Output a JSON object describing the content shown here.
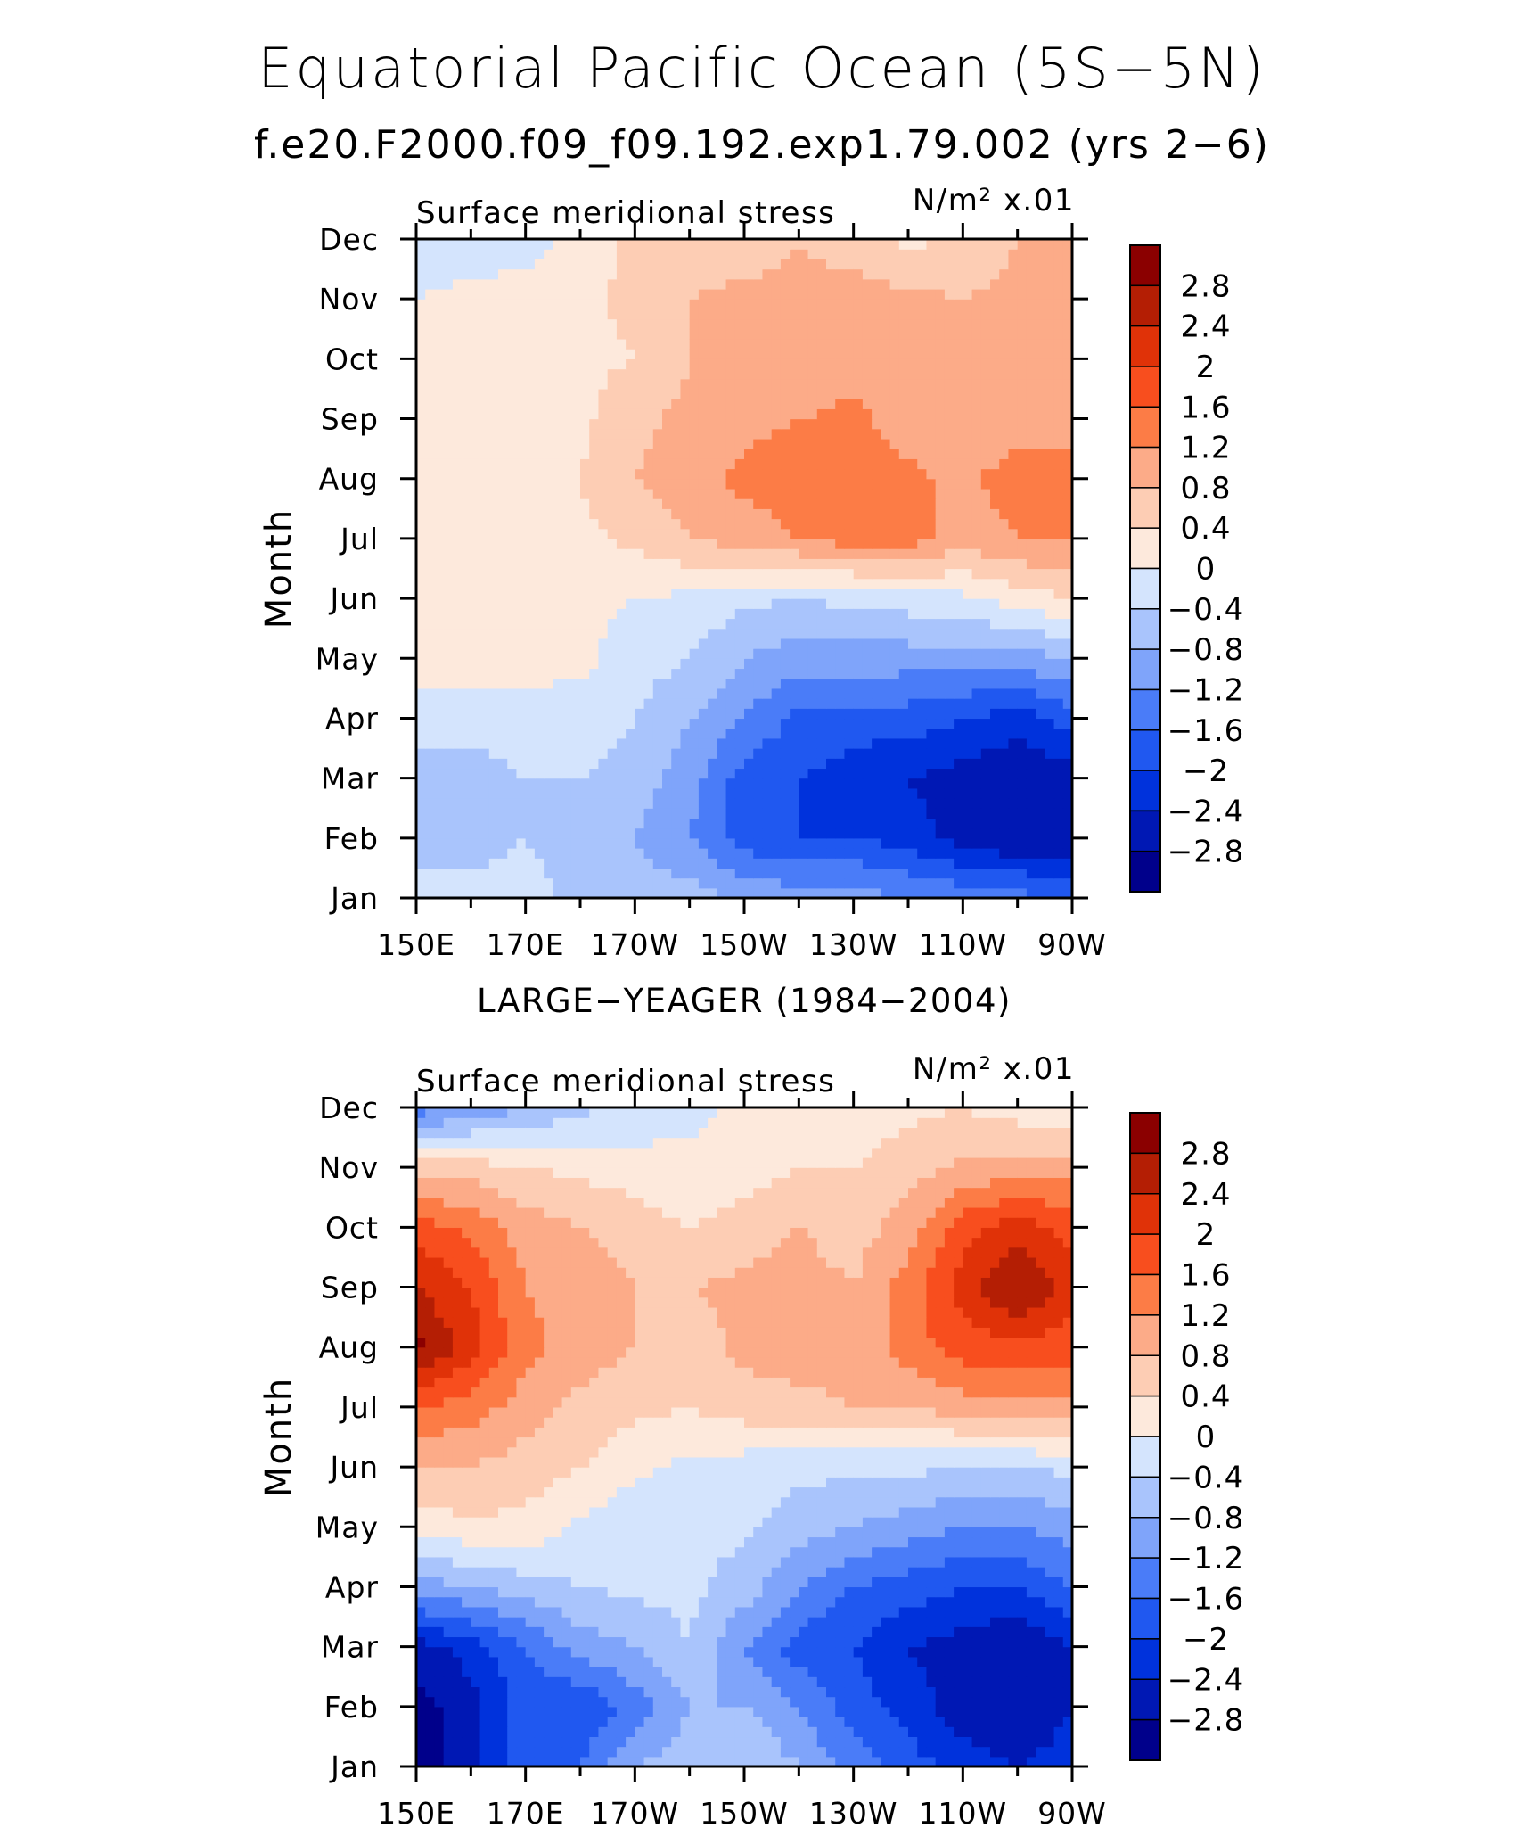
{
  "page": {
    "title": "Equatorial Pacific Ocean (5S−5N)",
    "subtitle": "f.e20.F2000.f09_f09.192.exp1.79.002 (yrs 2−6)"
  },
  "chart_data": [
    {
      "type": "heatmap",
      "panel_title": "",
      "left_label": "Surface meridional stress",
      "units": "N/m² x.01",
      "ylabel": "Month",
      "xlabel": "",
      "x_tick_labels": [
        "150E",
        "170E",
        "170W",
        "150W",
        "130W",
        "110W",
        "90W"
      ],
      "x_ticks": [
        150,
        170,
        190,
        210,
        230,
        250,
        270
      ],
      "xlim": [
        150,
        270
      ],
      "y_tick_labels": [
        "Jan",
        "Feb",
        "Mar",
        "Apr",
        "May",
        "Jun",
        "Jul",
        "Aug",
        "Sep",
        "Oct",
        "Nov",
        "Dec"
      ],
      "ylim": [
        1,
        12
      ],
      "contour_levels": [
        -2.8,
        -2.4,
        -2,
        -1.6,
        -1.2,
        -0.8,
        -0.4,
        0,
        0.4,
        0.8,
        1.2,
        1.6,
        2,
        2.4,
        2.8
      ],
      "colorbar_labels": [
        "2.8",
        "2.4",
        "2",
        "1.6",
        "1.2",
        "0.8",
        "0.4",
        "0",
        "−0.4",
        "−0.8",
        "−1.2",
        "−1.6",
        "−2",
        "−2.4",
        "−2.8"
      ],
      "colors": [
        "#00008b",
        "#0018b4",
        "#0032dc",
        "#2058f0",
        "#4a7cf8",
        "#7fa4fa",
        "#a9c4fc",
        "#d4e4fd",
        "#fde9dc",
        "#fdcdb4",
        "#fcab88",
        "#fc7c46",
        "#f84e1e",
        "#e03208",
        "#b41e04",
        "#8b0000"
      ],
      "x_grid": [
        150,
        160,
        170,
        180,
        190,
        200,
        210,
        220,
        230,
        240,
        250,
        260,
        270
      ],
      "values": [
        [
          -0.2,
          -0.2,
          -0.2,
          -0.6,
          -0.6,
          -0.6,
          -0.9,
          -1.0,
          -1.0,
          -1.2,
          -1.3,
          -1.4,
          -1.8
        ],
        [
          -0.6,
          -0.6,
          -0.4,
          -0.6,
          -0.8,
          -1.2,
          -1.8,
          -2.0,
          -2.0,
          -2.2,
          -2.6,
          -2.8,
          -2.6
        ],
        [
          -0.6,
          -0.6,
          -0.4,
          -0.4,
          -0.6,
          -1.0,
          -1.8,
          -2.0,
          -2.2,
          -2.4,
          -2.6,
          -2.8,
          -2.6
        ],
        [
          -0.2,
          -0.2,
          -0.2,
          -0.2,
          -0.4,
          -0.8,
          -1.2,
          -1.7,
          -1.8,
          -1.8,
          -2.0,
          -2.2,
          -1.8
        ],
        [
          0.2,
          0.2,
          0.2,
          0.1,
          -0.2,
          -0.4,
          -0.8,
          -1.0,
          -1.0,
          -1.0,
          -1.0,
          -1.0,
          -0.8
        ],
        [
          0.2,
          0.2,
          0.2,
          0.1,
          0.0,
          -0.1,
          -0.3,
          -0.4,
          -0.3,
          -0.2,
          -0.1,
          0.2,
          0.4
        ],
        [
          0.2,
          0.2,
          0.3,
          0.3,
          0.5,
          0.8,
          1.0,
          1.2,
          1.4,
          1.4,
          1.0,
          1.2,
          1.2
        ],
        [
          0.3,
          0.3,
          0.3,
          0.4,
          0.8,
          1.0,
          1.3,
          1.4,
          1.4,
          1.3,
          1.1,
          1.4,
          1.4
        ],
        [
          0.2,
          0.2,
          0.2,
          0.3,
          0.7,
          0.9,
          1.1,
          1.2,
          1.3,
          1.0,
          0.9,
          1.0,
          1.0
        ],
        [
          0.1,
          0.1,
          0.2,
          0.3,
          0.4,
          0.8,
          0.9,
          0.9,
          1.0,
          0.9,
          0.9,
          1.0,
          1.0
        ],
        [
          0.0,
          0.1,
          0.2,
          0.3,
          0.5,
          0.8,
          0.9,
          0.9,
          1.0,
          0.9,
          0.8,
          0.9,
          1.0
        ],
        [
          -0.2,
          -0.2,
          -0.2,
          0.2,
          0.5,
          0.5,
          0.6,
          0.8,
          0.6,
          0.3,
          0.5,
          0.8,
          0.8
        ]
      ]
    },
    {
      "type": "heatmap",
      "panel_title": "LARGE−YEAGER (1984−2004)",
      "left_label": "Surface meridional stress",
      "units": "N/m² x.01",
      "ylabel": "Month",
      "xlabel": "",
      "x_tick_labels": [
        "150E",
        "170E",
        "170W",
        "150W",
        "130W",
        "110W",
        "90W"
      ],
      "x_ticks": [
        150,
        170,
        190,
        210,
        230,
        250,
        270
      ],
      "xlim": [
        150,
        270
      ],
      "y_tick_labels": [
        "Jan",
        "Feb",
        "Mar",
        "Apr",
        "May",
        "Jun",
        "Jul",
        "Aug",
        "Sep",
        "Oct",
        "Nov",
        "Dec"
      ],
      "ylim": [
        1,
        12
      ],
      "contour_levels": [
        -2.8,
        -2.4,
        -2,
        -1.6,
        -1.2,
        -0.8,
        -0.4,
        0,
        0.4,
        0.8,
        1.2,
        1.6,
        2,
        2.4,
        2.8
      ],
      "colorbar_labels": [
        "2.8",
        "2.4",
        "2",
        "1.6",
        "1.2",
        "0.8",
        "0.4",
        "0",
        "−0.4",
        "−0.8",
        "−1.2",
        "−1.6",
        "−2",
        "−2.4",
        "−2.8"
      ],
      "colors": [
        "#00008b",
        "#0018b4",
        "#0032dc",
        "#2058f0",
        "#4a7cf8",
        "#7fa4fa",
        "#a9c4fc",
        "#d4e4fd",
        "#fde9dc",
        "#fdcdb4",
        "#fcab88",
        "#fc7c46",
        "#f84e1e",
        "#e03208",
        "#b41e04",
        "#8b0000"
      ],
      "x_grid": [
        150,
        160,
        170,
        180,
        190,
        200,
        210,
        220,
        230,
        240,
        250,
        260,
        270
      ],
      "values": [
        [
          -3.0,
          -2.6,
          -1.6,
          -1.6,
          -0.8,
          -0.6,
          -0.4,
          -0.8,
          -1.4,
          -1.8,
          -2.2,
          -2.4,
          -2.2
        ],
        [
          -3.0,
          -2.6,
          -1.8,
          -2.0,
          -1.4,
          -0.8,
          -0.8,
          -1.2,
          -1.8,
          -2.2,
          -2.6,
          -2.8,
          -2.4
        ],
        [
          -2.6,
          -2.2,
          -1.6,
          -1.0,
          -0.8,
          -0.4,
          -1.2,
          -1.8,
          -2.0,
          -2.4,
          -2.6,
          -2.8,
          -2.4
        ],
        [
          -1.0,
          -0.8,
          -0.6,
          -0.4,
          -0.3,
          -0.3,
          -0.6,
          -1.2,
          -1.6,
          -1.8,
          -2.0,
          -2.0,
          -1.6
        ],
        [
          0.2,
          0.3,
          0.3,
          -0.1,
          -0.3,
          -0.3,
          -0.3,
          -0.6,
          -0.8,
          -1.0,
          -1.2,
          -1.2,
          -1.0
        ],
        [
          0.8,
          0.8,
          0.6,
          0.4,
          0.1,
          -0.1,
          -0.2,
          -0.3,
          -0.3,
          -0.3,
          -0.4,
          -0.4,
          -0.3
        ],
        [
          1.6,
          1.4,
          1.0,
          0.7,
          0.5,
          0.4,
          0.6,
          0.7,
          0.8,
          0.8,
          1.0,
          1.1,
          1.1
        ],
        [
          2.9,
          2.2,
          1.3,
          1.0,
          0.8,
          0.6,
          0.9,
          1.0,
          0.9,
          1.4,
          1.8,
          1.8,
          1.8
        ],
        [
          2.4,
          2.0,
          1.2,
          1.1,
          0.8,
          0.8,
          0.9,
          1.0,
          0.8,
          1.4,
          2.2,
          2.9,
          2.2
        ],
        [
          1.8,
          1.5,
          1.0,
          0.8,
          0.6,
          0.4,
          0.6,
          0.8,
          0.6,
          1.0,
          1.8,
          2.2,
          1.8
        ],
        [
          0.6,
          0.6,
          0.4,
          0.3,
          0.2,
          0.1,
          0.2,
          0.4,
          0.4,
          0.6,
          0.9,
          1.0,
          1.0
        ],
        [
          -1.4,
          -1.1,
          -0.8,
          -0.5,
          -0.3,
          -0.1,
          0.1,
          0.2,
          0.2,
          0.3,
          0.4,
          0.2,
          0.1
        ]
      ]
    }
  ]
}
